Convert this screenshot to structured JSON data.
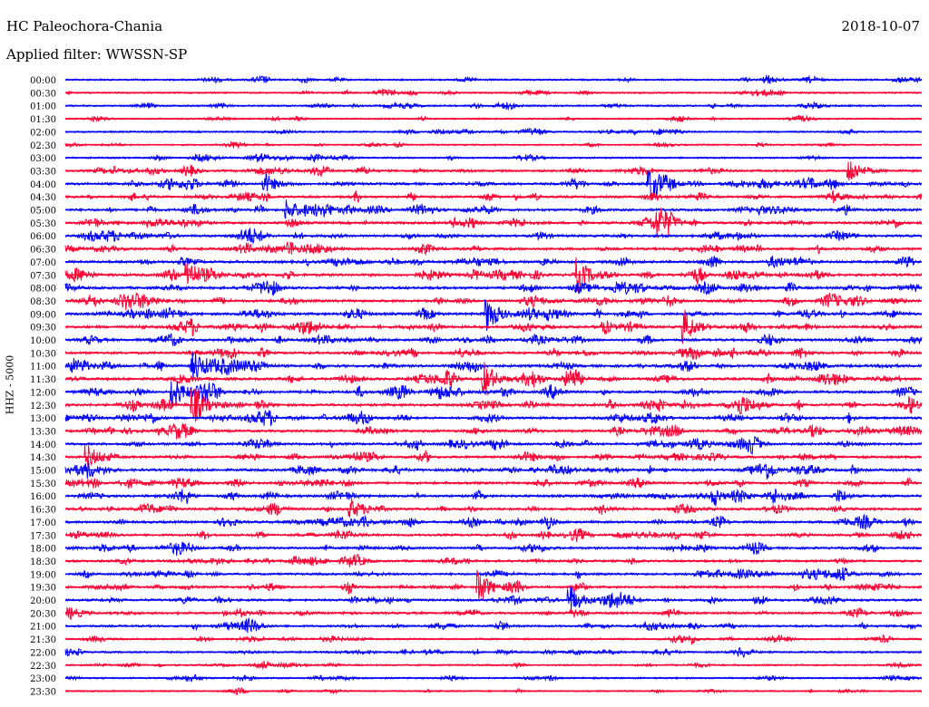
{
  "header": {
    "station": "HC Paleochora-Chania",
    "date": "2018-10-07",
    "filter": "Applied filter: WWSSN-SP"
  },
  "axis": {
    "channel_label": "HHZ - 5000"
  },
  "chart_data": {
    "type": "line",
    "title": "HC Paleochora-Chania",
    "subtitle": "Applied filter: WWSSN-SP",
    "ylabel": "HHZ - 5000",
    "row_labels": [
      "00:00",
      "00:30",
      "01:00",
      "01:30",
      "02:00",
      "02:30",
      "03:00",
      "03:30",
      "04:00",
      "04:30",
      "05:00",
      "05:30",
      "06:00",
      "06:30",
      "07:00",
      "07:30",
      "08:00",
      "08:30",
      "09:00",
      "09:30",
      "10:00",
      "10:30",
      "11:00",
      "11:30",
      "12:00",
      "12:30",
      "13:00",
      "13:30",
      "14:00",
      "14:30",
      "15:00",
      "15:30",
      "16:00",
      "16:30",
      "17:00",
      "17:30",
      "18:00",
      "18:30",
      "19:00",
      "19:30",
      "20:00",
      "20:30",
      "21:00",
      "21:30",
      "22:00",
      "22:30",
      "23:00",
      "23:30"
    ],
    "row_activity": [
      0.4,
      0.3,
      0.35,
      0.25,
      0.35,
      0.25,
      0.35,
      0.6,
      0.8,
      0.7,
      0.8,
      0.8,
      0.75,
      0.8,
      0.85,
      0.9,
      0.85,
      0.85,
      0.9,
      0.9,
      0.8,
      0.8,
      0.9,
      0.9,
      0.9,
      0.9,
      0.85,
      0.8,
      0.8,
      0.8,
      0.85,
      0.8,
      0.8,
      0.8,
      0.8,
      0.7,
      0.7,
      0.65,
      0.7,
      0.7,
      0.7,
      0.65,
      0.6,
      0.45,
      0.45,
      0.35,
      0.35,
      0.25
    ],
    "events": [
      {
        "row": 7,
        "minute": 27.5,
        "amp": 1.6
      },
      {
        "row": 8,
        "minute": 20.5,
        "amp": 2.2
      },
      {
        "row": 8,
        "minute": 7.0,
        "amp": 1.3
      },
      {
        "row": 10,
        "minute": 7.8,
        "amp": 1.3
      },
      {
        "row": 11,
        "minute": 20.8,
        "amp": 1.6
      },
      {
        "row": 15,
        "minute": 4.3,
        "amp": 2.0
      },
      {
        "row": 15,
        "minute": 18.0,
        "amp": 2.0
      },
      {
        "row": 18,
        "minute": 14.8,
        "amp": 2.2
      },
      {
        "row": 19,
        "minute": 21.7,
        "amp": 2.0
      },
      {
        "row": 22,
        "minute": 4.5,
        "amp": 1.6
      },
      {
        "row": 23,
        "minute": 14.7,
        "amp": 2.0
      },
      {
        "row": 24,
        "minute": 3.8,
        "amp": 2.0
      },
      {
        "row": 25,
        "minute": 4.5,
        "amp": 2.2
      },
      {
        "row": 29,
        "minute": 0.8,
        "amp": 1.4
      },
      {
        "row": 33,
        "minute": 10.0,
        "amp": 1.3
      },
      {
        "row": 39,
        "minute": 14.5,
        "amp": 2.2
      },
      {
        "row": 40,
        "minute": 17.7,
        "amp": 1.8
      }
    ],
    "colors": [
      "#0000ff",
      "#ff0033"
    ]
  }
}
